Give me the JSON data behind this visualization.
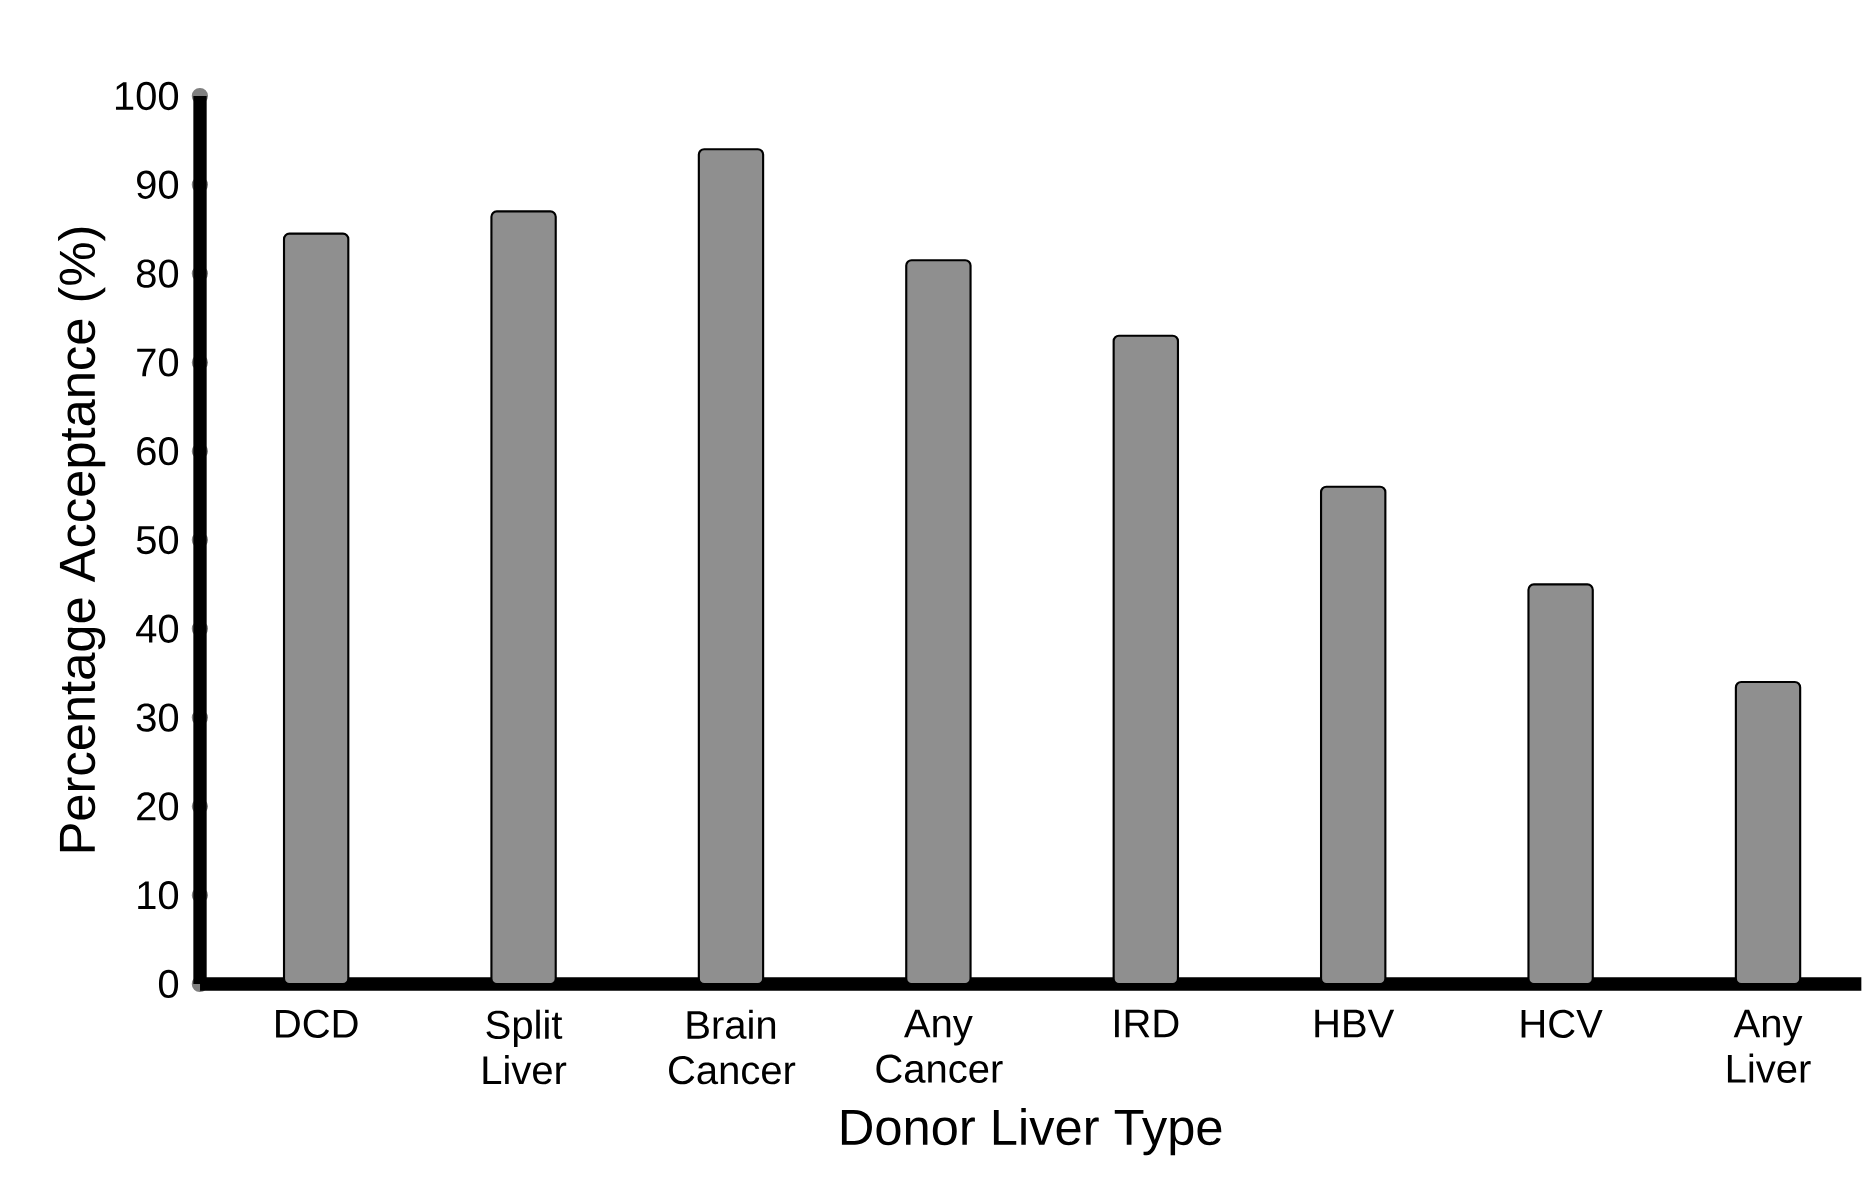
{
  "chart_data": {
    "type": "bar",
    "xlabel": "Donor Liver Type",
    "ylabel": "Percentage Acceptance (%)",
    "categories": [
      "DCD",
      "Split Liver",
      "Brain Cancer",
      "Any Cancer",
      "IRD",
      "HBV",
      "HCV",
      "Any Liver"
    ],
    "values": [
      84.5,
      87,
      94,
      81.5,
      73,
      56,
      45,
      34
    ],
    "color": "#8f8f8f",
    "ylim": [
      0,
      100
    ],
    "yticks": [
      0,
      10,
      20,
      30,
      40,
      50,
      60,
      70,
      80,
      90,
      100
    ]
  }
}
